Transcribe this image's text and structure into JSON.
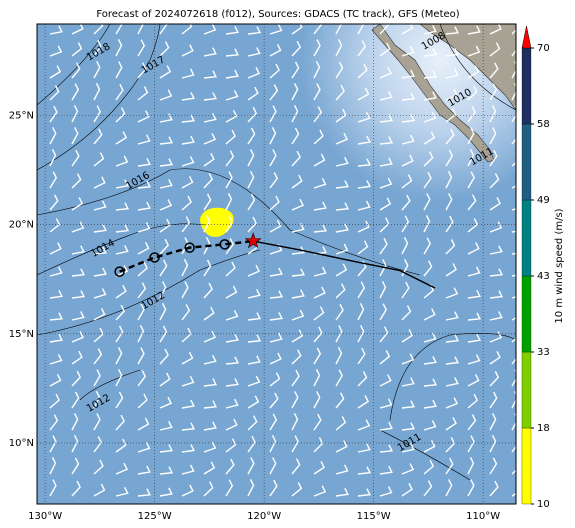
{
  "chart_data": {
    "type": "map",
    "title": "Forecast of 2024072618 (f012), Sources: GDACS (TC track), GFS (Meteo)",
    "xlim": [
      -130.37,
      -108.5
    ],
    "ylim": [
      7.2,
      29.2
    ],
    "xticks": [
      {
        "value": -130,
        "label": "130°W"
      },
      {
        "value": -125,
        "label": "125°W"
      },
      {
        "value": -120,
        "label": "120°W"
      },
      {
        "value": -115,
        "label": "115°W"
      },
      {
        "value": -110,
        "label": "110°W"
      }
    ],
    "yticks": [
      {
        "value": 10,
        "label": "10°N"
      },
      {
        "value": 15,
        "label": "15°N"
      },
      {
        "value": 20,
        "label": "20°N"
      },
      {
        "value": 25,
        "label": "25°N"
      }
    ],
    "grid": true,
    "track": {
      "lon": [
        -126.6,
        -125.0,
        -123.4,
        -121.8
      ],
      "lat": [
        17.85,
        18.5,
        18.95,
        19.1
      ],
      "color": "#000000"
    },
    "current_position": {
      "lon": -120.5,
      "lat": 19.25,
      "color": "#e00000"
    },
    "forecast_track": {
      "lon": [
        -120.5,
        -118.4,
        -115.8,
        -113.8,
        -112.2
      ],
      "lat": [
        19.25,
        18.85,
        18.3,
        17.9,
        17.1
      ],
      "color": "#000000"
    },
    "isobar_labels": [
      {
        "label": "1018",
        "lon": -127.5,
        "lat": 27.8
      },
      {
        "label": "1017",
        "lon": -125.0,
        "lat": 27.2
      },
      {
        "label": "1016",
        "lon": -125.7,
        "lat": 21.9
      },
      {
        "label": "1014",
        "lon": -127.3,
        "lat": 18.8
      },
      {
        "label": "1012",
        "lon": -125.0,
        "lat": 16.4
      },
      {
        "label": "1012",
        "lon": -127.5,
        "lat": 11.7
      },
      {
        "label": "1011",
        "lon": -113.3,
        "lat": 9.9
      },
      {
        "label": "1010",
        "lon": -111.0,
        "lat": 25.7
      },
      {
        "label": "1008",
        "lon": -112.2,
        "lat": 28.3
      },
      {
        "label": "1011",
        "lon": -110.0,
        "lat": 23.0
      }
    ],
    "colorbar": {
      "label": "10 m wind speed (m/s)",
      "boundaries": [
        10,
        18,
        33,
        43,
        49,
        58,
        70
      ],
      "colors": [
        "#ffff00",
        "#80d000",
        "#00a000",
        "#008080",
        "#1f5f80",
        "#1f2f60"
      ],
      "extend_color": "#ff0000"
    }
  }
}
